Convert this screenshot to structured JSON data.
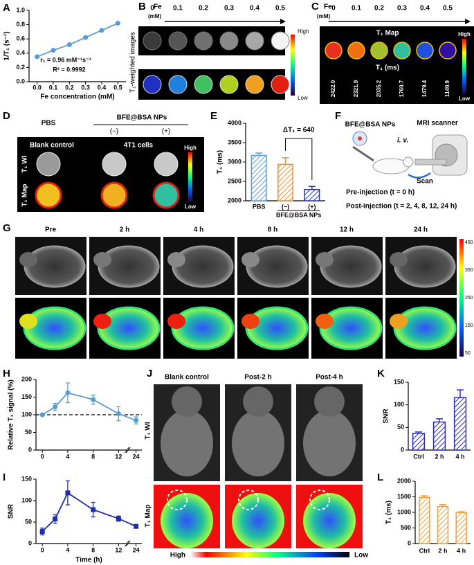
{
  "chart_data": [
    {
      "type": "line",
      "panel": "A",
      "x": [
        0,
        0.1,
        0.2,
        0.3,
        0.4,
        0.5
      ],
      "values": [
        0.35,
        0.44,
        0.52,
        0.62,
        0.72,
        0.82
      ],
      "color": "#5b9bd5",
      "marker": "circle",
      "xlim": [
        -0.05,
        0.55
      ],
      "ylim": [
        0,
        1.0
      ],
      "xticks": [
        {
          "value": 0,
          "label": "0.0"
        },
        0.1,
        0.2,
        0.3,
        0.4,
        0.5
      ],
      "yticks": [
        {
          "value": 0,
          "label": "0.0"
        },
        0.2,
        0.4,
        0.6,
        0.8,
        {
          "value": 1,
          "label": "1.0"
        }
      ],
      "xlabel": "Fe concentration (mM)",
      "ylabel": "1/T₁ (s⁻¹)",
      "annotations": [
        "r₁ = 0.96 mM⁻¹s⁻¹",
        "R² = 0.9992"
      ]
    },
    {
      "type": "bar",
      "panel": "E",
      "categories": [
        "PBS",
        "(−)",
        "(+)"
      ],
      "values": [
        3170,
        2940,
        2290
      ],
      "errors": [
        60,
        170,
        80
      ],
      "colors": [
        "#5b9bd5",
        "#f08c2e",
        "#2233c0"
      ],
      "ylim": [
        2000,
        4000
      ],
      "yticks": [
        2000,
        2500,
        3000,
        3500,
        4000
      ],
      "ylabel": "T₁ (ms)",
      "group_label": "BFE@BSA NPs",
      "annotation": "ΔT₁ = 640"
    },
    {
      "type": "line",
      "panel": "H",
      "x": [
        0,
        2,
        4,
        8,
        12,
        24
      ],
      "values": [
        100,
        122,
        162,
        143,
        103,
        84
      ],
      "errors": [
        0,
        10,
        28,
        13,
        20,
        10
      ],
      "color": "#5b9bd5",
      "marker": "circle",
      "xlim": [
        -1,
        25
      ],
      "x_break": [
        13,
        23
      ],
      "ylim": [
        0,
        200
      ],
      "xticks": [
        0,
        4,
        8,
        12,
        24
      ],
      "yticks": [
        0,
        50,
        100,
        150,
        200
      ],
      "ylabel": "Relative T₁ signal (%)",
      "ref_line": 100
    },
    {
      "type": "line",
      "panel": "I",
      "x": [
        0,
        2,
        4,
        8,
        12,
        24
      ],
      "values": [
        28,
        57,
        118,
        79,
        58,
        40
      ],
      "errors": [
        8,
        10,
        28,
        17,
        6,
        4
      ],
      "color": "#1f2fa8",
      "marker": "square",
      "xlim": [
        -1,
        25
      ],
      "x_break": [
        13,
        23
      ],
      "ylim": [
        0,
        150
      ],
      "xticks": [
        0,
        4,
        8,
        12,
        24
      ],
      "yticks": [
        0,
        50,
        100,
        150
      ],
      "xlabel": "Time (h)",
      "ylabel": "SNR"
    },
    {
      "type": "bar",
      "panel": "K",
      "categories": [
        "Ctrl",
        "2 h",
        "4 h"
      ],
      "values": [
        37,
        62,
        116
      ],
      "errors": [
        3,
        7,
        17
      ],
      "colors": [
        "#2a2ad0",
        "#2a2ad0",
        "#2a2ad0"
      ],
      "ylim": [
        0,
        150
      ],
      "yticks": [
        0,
        50,
        100,
        150
      ],
      "ylabel": "SNR"
    },
    {
      "type": "bar",
      "panel": "L",
      "categories": [
        "Ctrl",
        "2 h",
        "4 h"
      ],
      "values": [
        1480,
        1190,
        990
      ],
      "errors": [
        50,
        60,
        30
      ],
      "colors": [
        "#f0a040",
        "#f0a040",
        "#f0a040"
      ],
      "ylim": [
        0,
        2000
      ],
      "yticks": [
        0,
        500,
        1000,
        1500,
        2000
      ],
      "ylabel": "T₁ (ms)"
    }
  ],
  "panels": {
    "B": {
      "letter": "B",
      "fe_label": "Fe",
      "unit": "(mM)",
      "concentrations": [
        "0",
        "0.1",
        "0.2",
        "0.3",
        "0.4",
        "0.5"
      ],
      "side_label": "T₁-weighted images",
      "high": "High",
      "low": "Low"
    },
    "C": {
      "letter": "C",
      "fe_label": "Fe",
      "unit": "(mM)",
      "concentrations": [
        "0",
        "0.1",
        "0.2",
        "0.3",
        "0.4",
        "0.5"
      ],
      "map_title": "T₁ Map",
      "t1_title": "T₁ (ms)",
      "t1_values": [
        "2422.0",
        "2321.9",
        "2035.2",
        "1760.7",
        "1479.4",
        "1140.9"
      ],
      "high": "High",
      "low": "Low"
    },
    "D": {
      "letter": "D",
      "pbs": "PBS",
      "group": "BFE@BSA NPs",
      "minus": "(−)",
      "plus": "(+)",
      "col1": "Blank control",
      "col2": "4T1 cells",
      "row1": "T₁ WI",
      "row2": "T₁ Map",
      "high": "High",
      "low": "Low"
    },
    "F": {
      "letter": "F",
      "agent": "BFE@BSA NPs",
      "route": "i. v.",
      "scanner": "MRI scanner",
      "scan": "Scan",
      "pre": "Pre-injection (t = 0 h)",
      "post": "Post-injection (t = 2, 4, 8, 12, 24 h)"
    },
    "G": {
      "letter": "G",
      "times": [
        "Pre",
        "2 h",
        "4 h",
        "8 h",
        "12 h",
        "24 h"
      ],
      "scale": [
        "450",
        "350",
        "250",
        "150",
        "50"
      ]
    },
    "J": {
      "letter": "J",
      "columns": [
        "Blank control",
        "Post-2 h",
        "Post-4 h"
      ],
      "row1": "T₁ WI",
      "row2": "T₁ Map",
      "high": "High",
      "low": "Low"
    }
  }
}
